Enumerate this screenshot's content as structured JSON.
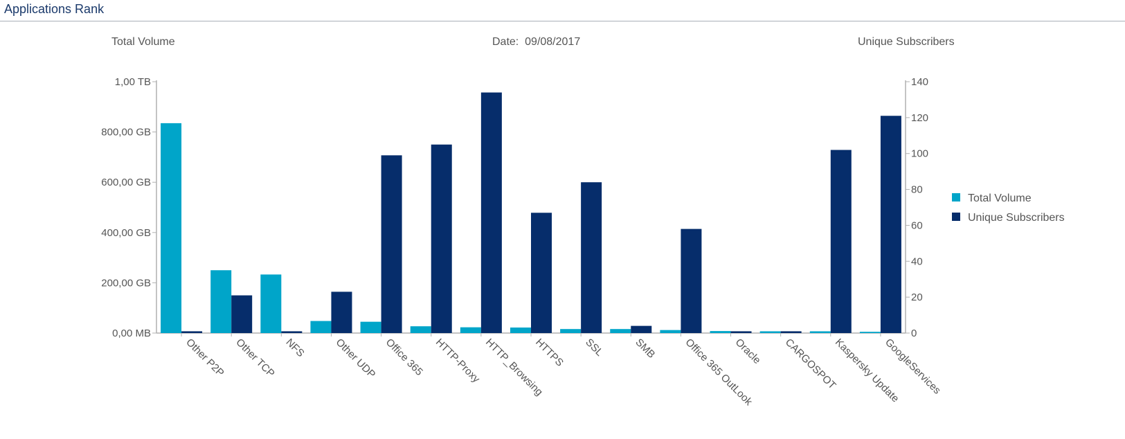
{
  "panel": {
    "title": "Applications Rank"
  },
  "header": {
    "left_label": "Total Volume",
    "date_label": "Date:",
    "date_value": "09/08/2017",
    "right_label": "Unique Subscribers"
  },
  "colors": {
    "total_volume": "#00a5c9",
    "unique_subscribers": "#062d6b"
  },
  "chart_data": {
    "type": "bar",
    "categories": [
      "Other P2P",
      "Other TCP",
      "NFS",
      "Other UDP",
      "Office 365",
      "HTTP-Proxy",
      "HTTP_Browsing",
      "HTTPS",
      "SSL",
      "SMB",
      "Office 365 OutLook",
      "Oracle",
      "CARGOSPOT",
      "Kaspersky Update",
      "GoogleServices"
    ],
    "series": [
      {
        "name": "Total Volume",
        "axis": "left",
        "unit": "GB",
        "values": [
          835,
          250,
          233,
          48,
          45,
          27,
          23,
          22,
          16,
          16,
          12,
          8,
          7,
          7,
          5
        ]
      },
      {
        "name": "Unique Subscribers",
        "axis": "right",
        "values": [
          1,
          21,
          1,
          23,
          99,
          105,
          134,
          67,
          84,
          4,
          58,
          1,
          1,
          102,
          121
        ]
      }
    ],
    "y_left": {
      "ticks": [
        "0,00 MB",
        "200,00 GB",
        "400,00 GB",
        "600,00 GB",
        "800,00 GB",
        "1,00 TB"
      ],
      "range": [
        0,
        1000
      ]
    },
    "y_right": {
      "ticks": [
        "0",
        "20",
        "40",
        "60",
        "80",
        "100",
        "120",
        "140"
      ],
      "range": [
        0,
        140
      ]
    },
    "legend_position": "right",
    "grid": false
  }
}
